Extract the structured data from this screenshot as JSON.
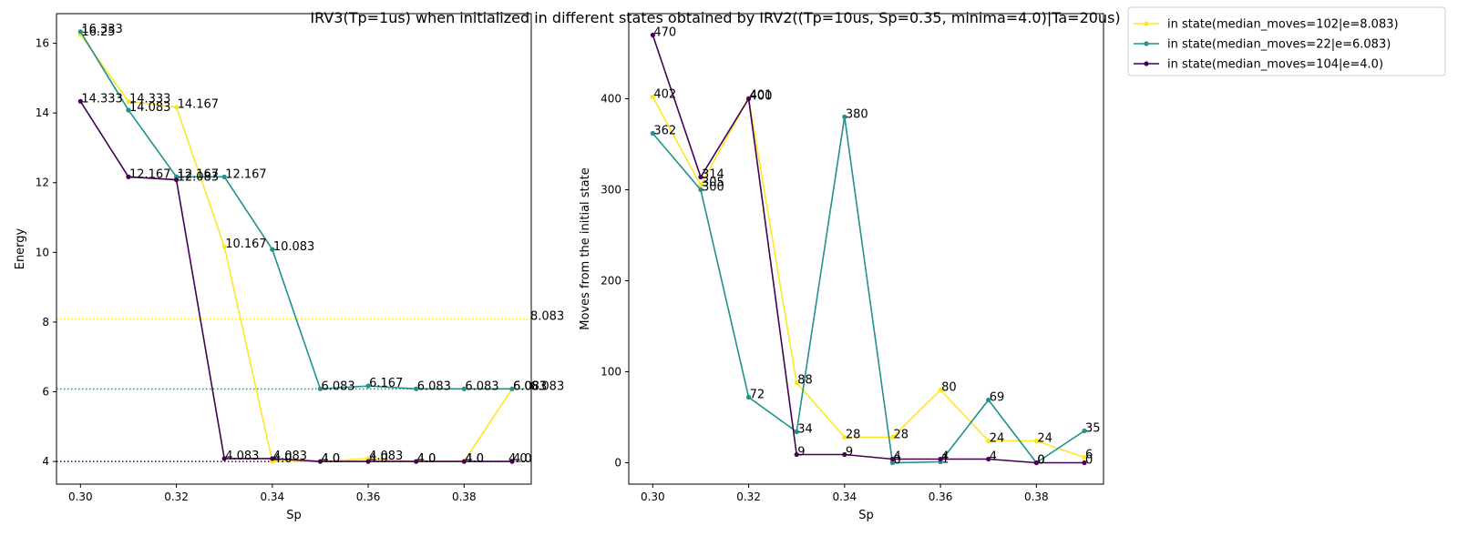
{
  "title": "IRV3(Tp=1us) when initialized in different states obtained by IRV2((Tp=10us, Sp=0.35, minima=4.0)|Ta=20us)",
  "legend": {
    "placement": "outside-top-right",
    "entries": [
      "in state(median_moves=102|e=8.083)",
      "in state(median_moves=22|e=6.083)",
      "in state(median_moves=104|e=4.0)"
    ]
  },
  "chart_data": [
    {
      "type": "line",
      "xlabel": "Sp",
      "ylabel": "Energy",
      "xlim": [
        0.295,
        0.394
      ],
      "ylim": [
        3.35,
        16.85
      ],
      "xticks": [
        0.3,
        0.32,
        0.34,
        0.36,
        0.38
      ],
      "xtick_labels": [
        "0.30",
        "0.32",
        "0.34",
        "0.36",
        "0.38"
      ],
      "yticks": [
        4,
        6,
        8,
        10,
        12,
        14,
        16
      ],
      "ytick_labels": [
        "4",
        "6",
        "8",
        "10",
        "12",
        "14",
        "16"
      ],
      "x": [
        0.3,
        0.31,
        0.32,
        0.33,
        0.34,
        0.35,
        0.36,
        0.37,
        0.38,
        0.39
      ],
      "series": [
        {
          "name": "in state(median_moves=102|e=8.083)",
          "color": "#fde725",
          "values": [
            16.25,
            14.333,
            14.167,
            10.167,
            4.0,
            4.0,
            4.083,
            4.0,
            4.0,
            6.083
          ],
          "labels": [
            "16.25",
            "14.333",
            "14.167",
            "10.167",
            "4.0",
            "4.0",
            "4.083",
            "4.0",
            "4.0",
            "6.083"
          ]
        },
        {
          "name": "in state(median_moves=22|e=6.083)",
          "color": "#21918c",
          "values": [
            16.333,
            14.083,
            12.167,
            12.167,
            10.083,
            6.083,
            6.167,
            6.083,
            6.083,
            6.083
          ],
          "labels": [
            "16.333",
            "14.083",
            "12.167",
            "12.167",
            "10.083",
            "6.083",
            "6.167",
            "6.083",
            "6.083",
            "6.083"
          ]
        },
        {
          "name": "in state(median_moves=104|e=4.0)",
          "color": "#440154",
          "values": [
            14.333,
            12.167,
            12.083,
            4.083,
            4.083,
            4.0,
            4.0,
            4.0,
            4.0,
            4.0
          ],
          "labels": [
            "14.333",
            "12.167",
            "12.083",
            "4.083",
            "4.083",
            "4.0",
            "4.0",
            "4.0",
            "4.0",
            "4.0"
          ]
        }
      ],
      "reference_lines": [
        {
          "y": 8.083,
          "color": "#fde725",
          "style": "dotted",
          "label": "8.083"
        },
        {
          "y": 6.083,
          "color": "#21918c",
          "style": "dotted",
          "label": "6.083"
        },
        {
          "y": 4.0,
          "color": "#440154",
          "style": "dotted",
          "label": "4.0"
        }
      ]
    },
    {
      "type": "line",
      "xlabel": "Sp",
      "ylabel": "Moves from the initial state",
      "xlim": [
        0.295,
        0.394
      ],
      "ylim": [
        -23.5,
        493.5
      ],
      "xticks": [
        0.3,
        0.32,
        0.34,
        0.36,
        0.38
      ],
      "xtick_labels": [
        "0.30",
        "0.32",
        "0.34",
        "0.36",
        "0.38"
      ],
      "yticks": [
        0,
        100,
        200,
        300,
        400
      ],
      "ytick_labels": [
        "0",
        "100",
        "200",
        "300",
        "400"
      ],
      "x": [
        0.3,
        0.31,
        0.32,
        0.33,
        0.34,
        0.35,
        0.36,
        0.37,
        0.38,
        0.39
      ],
      "series": [
        {
          "name": "in state(median_moves=102|e=8.083)",
          "color": "#fde725",
          "values": [
            402,
            305,
            401,
            88,
            28,
            28,
            80,
            24,
            24,
            6
          ],
          "labels": [
            "402",
            "305",
            "401",
            "88",
            "28",
            "28",
            "80",
            "24",
            "24",
            "6"
          ]
        },
        {
          "name": "in state(median_moves=22|e=6.083)",
          "color": "#21918c",
          "values": [
            362,
            300,
            72,
            34,
            380,
            0,
            1,
            69,
            0,
            35
          ],
          "labels": [
            "362",
            "300",
            "72",
            "34",
            "380",
            "0",
            "1",
            "69",
            "0",
            "35"
          ]
        },
        {
          "name": "in state(median_moves=104|e=4.0)",
          "color": "#440154",
          "values": [
            470,
            314,
            400,
            9,
            9,
            4,
            4,
            4,
            0,
            0
          ],
          "labels": [
            "470",
            "314",
            "400",
            "9",
            "9",
            "4",
            "4",
            "4",
            "0",
            "0"
          ]
        }
      ]
    }
  ]
}
